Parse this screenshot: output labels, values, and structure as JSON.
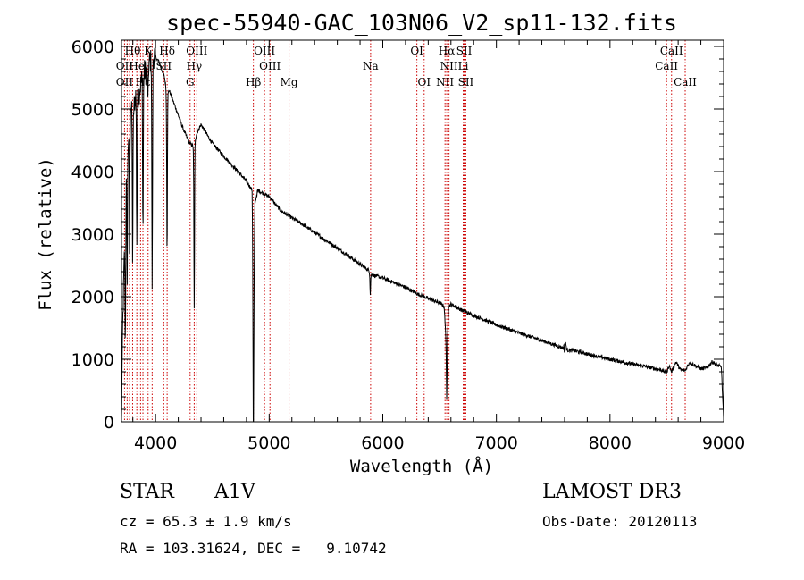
{
  "chart_data": {
    "type": "line",
    "title": "spec-55940-GAC_103N06_V2_sp11-132.fits",
    "xlabel": "Wavelength (Å)",
    "ylabel": "Flux (relative)",
    "xlim": [
      3700,
      9000
    ],
    "ylim": [
      0,
      6100
    ],
    "xticks": [
      4000,
      5000,
      6000,
      7000,
      8000,
      9000
    ],
    "yticks": [
      0,
      1000,
      2000,
      3000,
      4000,
      5000,
      6000
    ],
    "spectrum_anchors": {
      "x": [
        3700,
        3710,
        3740,
        3760,
        3780,
        3800,
        3830,
        3850,
        3880,
        3900,
        3920,
        3935,
        3950,
        3970,
        3990,
        4030,
        4080,
        4100,
        4120,
        4150,
        4200,
        4250,
        4300,
        4340,
        4360,
        4400,
        4500,
        4600,
        4700,
        4800,
        4850,
        4861,
        4875,
        4900,
        4950,
        5000,
        5100,
        5200,
        5300,
        5500,
        5700,
        5890,
        5900,
        6000,
        6200,
        6300,
        6400,
        6500,
        6540,
        6563,
        6580,
        6600,
        6700,
        6800,
        7000,
        7200,
        7400,
        7590,
        7600,
        7620,
        7700,
        7900,
        8100,
        8300,
        8400,
        8450,
        8498,
        8520,
        8542,
        8580,
        8620,
        8662,
        8700,
        8750,
        8800,
        8850,
        8900,
        8950,
        8980,
        9000
      ],
      "y": [
        0,
        1500,
        3800,
        4500,
        5100,
        4900,
        5300,
        5200,
        5500,
        5600,
        5600,
        5700,
        5750,
        5800,
        5850,
        5750,
        5500,
        5200,
        5300,
        5150,
        4900,
        4650,
        4450,
        4400,
        4600,
        4750,
        4450,
        4250,
        4050,
        3850,
        3700,
        1600,
        3500,
        3700,
        3650,
        3600,
        3380,
        3260,
        3150,
        2900,
        2650,
        2400,
        2350,
        2300,
        2150,
        2050,
        1970,
        1900,
        1850,
        1100,
        1850,
        1880,
        1780,
        1700,
        1550,
        1420,
        1300,
        1180,
        1350,
        1150,
        1130,
        1040,
        960,
        890,
        850,
        830,
        780,
        900,
        800,
        960,
        830,
        820,
        950,
        900,
        850,
        860,
        960,
        900,
        880,
        50
      ]
    },
    "absorption_lines": [
      {
        "wave": 3734,
        "depth": 2000
      },
      {
        "wave": 3750,
        "depth": 1800
      },
      {
        "wave": 3771,
        "depth": 2200
      },
      {
        "wave": 3798,
        "depth": 2300
      },
      {
        "wave": 3835,
        "depth": 2400
      },
      {
        "wave": 3889,
        "depth": 2500
      },
      {
        "wave": 3933,
        "depth": 600
      },
      {
        "wave": 3970,
        "depth": 3600
      },
      {
        "wave": 4101,
        "depth": 2500
      },
      {
        "wave": 4340,
        "depth": 2600
      },
      {
        "wave": 4861,
        "depth": 2100
      },
      {
        "wave": 5890,
        "depth": 350
      },
      {
        "wave": 6563,
        "depth": 800
      },
      {
        "wave": 7600,
        "depth": 220
      }
    ],
    "line_markers": [
      {
        "label": "Hθ",
        "wave": 3798,
        "row": 1
      },
      {
        "label": "K",
        "wave": 3934,
        "row": 1
      },
      {
        "label": "Hδ",
        "wave": 4102,
        "row": 1
      },
      {
        "label": "OIII",
        "wave": 4363,
        "row": 1
      },
      {
        "label": "OIII",
        "wave": 4959,
        "row": 1
      },
      {
        "label": "OI",
        "wave": 6300,
        "row": 1
      },
      {
        "label": "Hα",
        "wave": 6563,
        "row": 1
      },
      {
        "label": "SII",
        "wave": 6716,
        "row": 1
      },
      {
        "label": "CaII",
        "wave": 8542,
        "row": 1
      },
      {
        "label": "OII",
        "wave": 3727,
        "row": 2
      },
      {
        "label": "He",
        "wave": 3835,
        "row": 2
      },
      {
        "label": "SII",
        "wave": 4072,
        "row": 2
      },
      {
        "label": "Hγ",
        "wave": 4340,
        "row": 2
      },
      {
        "label": "OIII",
        "wave": 5007,
        "row": 2
      },
      {
        "label": "Na",
        "wave": 5893,
        "row": 2
      },
      {
        "label": "NII",
        "wave": 6583,
        "row": 2
      },
      {
        "label": "Li",
        "wave": 6708,
        "row": 2
      },
      {
        "label": "CaII",
        "wave": 8498,
        "row": 2
      },
      {
        "label": "OII",
        "wave": 3727,
        "row": 3
      },
      {
        "label": "Hε",
        "wave": 3889,
        "row": 3
      },
      {
        "label": "G",
        "wave": 4304,
        "row": 3
      },
      {
        "label": "Hβ",
        "wave": 4861,
        "row": 3
      },
      {
        "label": "Mg",
        "wave": 5175,
        "row": 3
      },
      {
        "label": "OI",
        "wave": 6364,
        "row": 3
      },
      {
        "label": "NII",
        "wave": 6548,
        "row": 3
      },
      {
        "label": "SII",
        "wave": 6731,
        "row": 3
      },
      {
        "label": "CaII",
        "wave": 8662,
        "row": 3
      }
    ],
    "extra_marker_waves": [
      3750,
      3771,
      3868,
      3970
    ]
  },
  "info": {
    "class": "STAR",
    "subclass": "A1V",
    "survey": "LAMOST DR3",
    "cz": "cz = 65.3 ± 1.9 km/s",
    "obs_date": "Obs-Date: 20120113",
    "coords": "RA = 103.31624, DEC =   9.10742"
  },
  "colors": {
    "marker": "#cc0000",
    "spectrum": "#000000",
    "axis": "#000000"
  }
}
